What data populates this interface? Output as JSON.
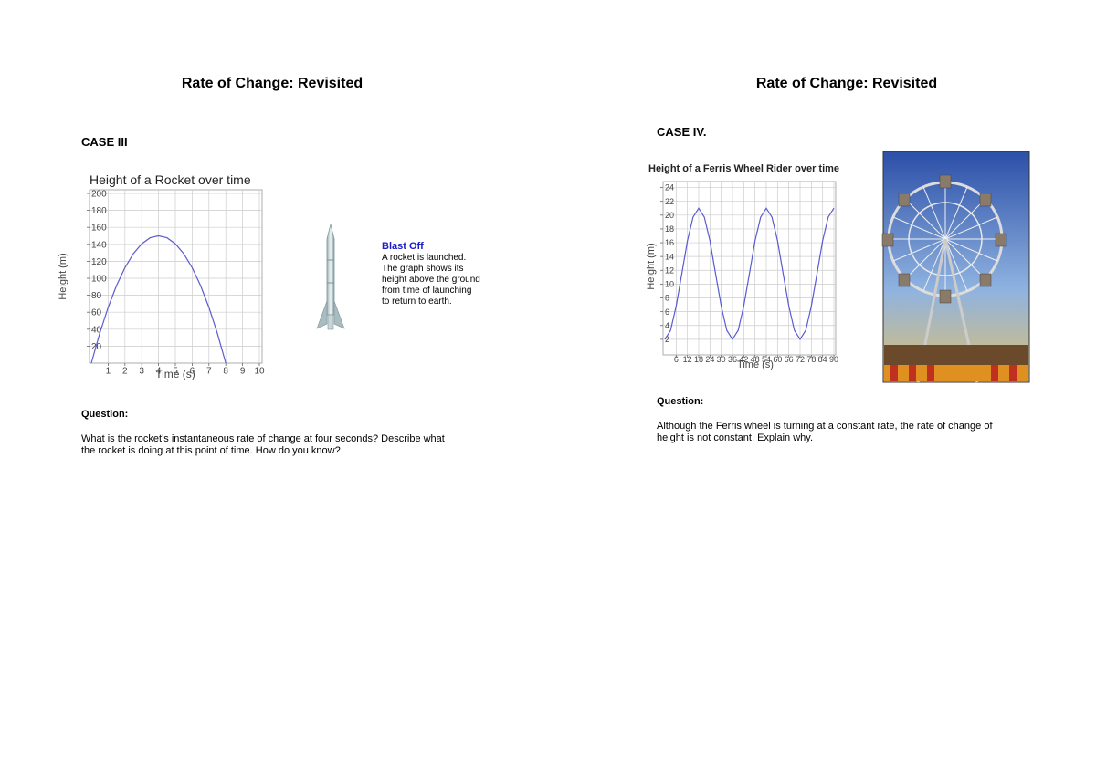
{
  "pages": [
    {
      "title": "Rate of Change: Revisited",
      "case_label": "CASE III",
      "question_label": "Question:",
      "question": "What is the rocket’s instantaneous rate of change at four seconds? Describe what the rocket is doing at this point of time. How do you know?"
    },
    {
      "title": "Rate of Change: Revisited",
      "case_label": "CASE IV.",
      "question_label": "Question:",
      "question": "Although the Ferris wheel is turning at a constant rate, the rate of change of height is not constant. Explain why."
    }
  ],
  "rocket_caption": {
    "title": "Blast Off",
    "text": "A rocket is launched. The graph shows its height above the ground from time of launching to return to earth."
  },
  "chart_data": [
    {
      "type": "line",
      "title": "Height of a Rocket over time",
      "x_label": "Time (s)",
      "y_label": "Height (m)",
      "x": [
        0,
        0.5,
        1,
        1.5,
        2,
        2.5,
        3,
        3.5,
        4,
        4.5,
        5,
        5.5,
        6,
        6.5,
        7,
        7.5,
        8
      ],
      "values": [
        0,
        35.2,
        65.6,
        91.4,
        112.5,
        128.9,
        140.6,
        147.7,
        150,
        147.7,
        140.6,
        128.9,
        112.5,
        91.4,
        65.6,
        35.2,
        0
      ],
      "color": "#5b5bd0",
      "xlim": [
        0,
        10
      ],
      "ylim": [
        0,
        200
      ],
      "xticks": [
        1,
        2,
        3,
        4,
        5,
        6,
        7,
        8,
        9,
        10
      ],
      "yticks": [
        20,
        40,
        60,
        80,
        100,
        120,
        140,
        160,
        180,
        200
      ],
      "grid": true
    },
    {
      "type": "line",
      "title": "Height of a Ferris Wheel Rider over time",
      "x_label": "Time (s)",
      "y_label": "Height (m)",
      "x": [
        0,
        3,
        6,
        9,
        12,
        15,
        18,
        21,
        24,
        27,
        30,
        33,
        36,
        39,
        42,
        45,
        48,
        51,
        54,
        57,
        60,
        63,
        66,
        69,
        72,
        75,
        78,
        81,
        84,
        87,
        90
      ],
      "values": [
        2,
        3.3,
        6.8,
        11.5,
        16.3,
        19.7,
        21,
        19.7,
        16.3,
        11.5,
        6.8,
        3.3,
        2,
        3.3,
        6.8,
        11.5,
        16.3,
        19.7,
        21,
        19.7,
        16.3,
        11.5,
        6.8,
        3.3,
        2,
        3.3,
        6.8,
        11.5,
        16.3,
        19.7,
        21
      ],
      "color": "#5b5bd0",
      "xlim": [
        0,
        90
      ],
      "ylim": [
        0,
        25
      ],
      "xticks": [
        6,
        12,
        18,
        24,
        30,
        36,
        42,
        48,
        54,
        60,
        66,
        72,
        78,
        84,
        90
      ],
      "yticks": [
        2,
        4,
        6,
        8,
        10,
        12,
        14,
        16,
        18,
        20,
        22,
        24
      ],
      "grid": true
    }
  ]
}
